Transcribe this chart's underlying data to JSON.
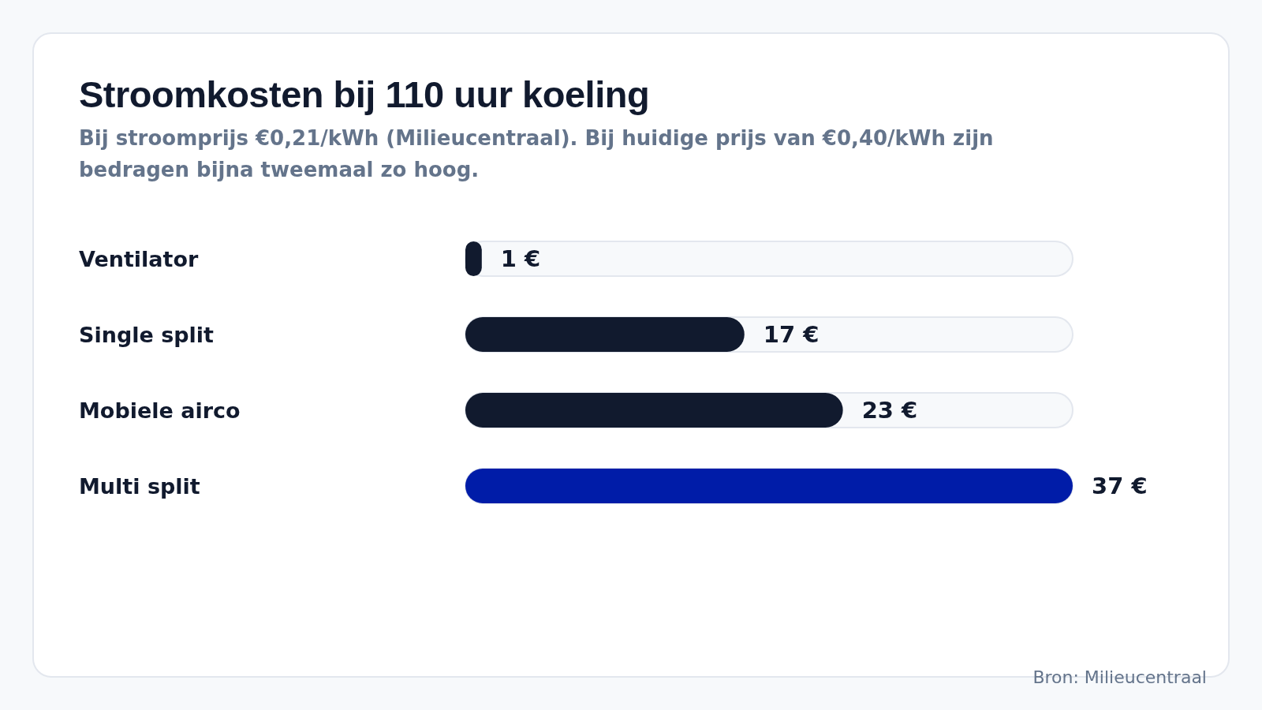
{
  "chart_data": {
    "type": "bar",
    "orientation": "horizontal",
    "title": "Stroomkosten bij 110 uur koeling",
    "subtitle": "Bij stroomprijs €0,21/kWh (Milieucentraal). Bij huidige prijs van €0,40/kWh zijn bedragen bijna tweemaal zo hoog.",
    "categories": [
      "Ventilator",
      "Single split",
      "Mobiele airco",
      "Multi split"
    ],
    "values": [
      1,
      17,
      23,
      37
    ],
    "colors": [
      "#111a2e",
      "#111a2e",
      "#111a2e",
      "#001ca8"
    ],
    "value_labels": [
      "1 €",
      "17 €",
      "23 €",
      "37 €"
    ],
    "annotations": [
      "Bron: Milieucentraal"
    ]
  }
}
